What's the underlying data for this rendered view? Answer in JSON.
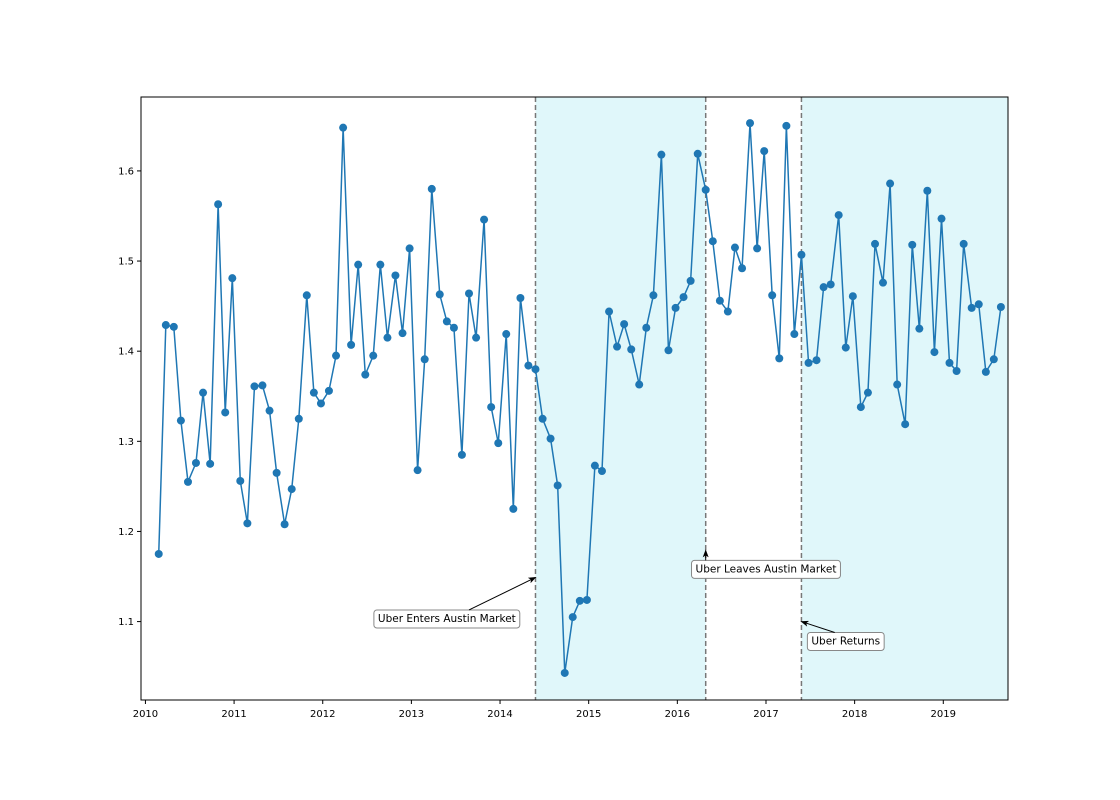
{
  "chart_data": {
    "type": "line",
    "markers": true,
    "xlim": [
      2009.95,
      2019.73
    ],
    "ylim": [
      1.013,
      1.682
    ],
    "x_ticks": [
      2010,
      2011,
      2012,
      2013,
      2014,
      2015,
      2016,
      2017,
      2018,
      2019
    ],
    "y_ticks": [
      1.1,
      1.2,
      1.3,
      1.4,
      1.5,
      1.6
    ],
    "grid": false,
    "colors": {
      "line": "#1f77b4",
      "shade": "#e0f7fa",
      "vline": "#777777"
    },
    "series": [
      {
        "x": [
          2010.15,
          2010.23,
          2010.32,
          2010.4,
          2010.48,
          2010.57,
          2010.65,
          2010.73,
          2010.82,
          2010.9,
          2010.98,
          2011.07,
          2011.15,
          2011.23,
          2011.32,
          2011.4,
          2011.48,
          2011.57,
          2011.65,
          2011.73,
          2011.82,
          2011.9,
          2011.98,
          2012.07,
          2012.15,
          2012.23,
          2012.32,
          2012.4,
          2012.48,
          2012.57,
          2012.65,
          2012.73,
          2012.82,
          2012.9,
          2012.98,
          2013.07,
          2013.15,
          2013.23,
          2013.32,
          2013.4,
          2013.48,
          2013.57,
          2013.65,
          2013.73,
          2013.82,
          2013.9,
          2013.98,
          2014.07,
          2014.15,
          2014.23,
          2014.32,
          2014.4,
          2014.48,
          2014.57,
          2014.65,
          2014.73,
          2014.82,
          2014.9,
          2014.98,
          2015.07,
          2015.15,
          2015.23,
          2015.32,
          2015.4,
          2015.48,
          2015.57,
          2015.65,
          2015.73,
          2015.82,
          2015.9,
          2015.98,
          2016.07,
          2016.15,
          2016.23,
          2016.32,
          2016.4,
          2016.48,
          2016.57,
          2016.65,
          2016.73,
          2016.82,
          2016.9,
          2016.98,
          2017.07,
          2017.15,
          2017.23,
          2017.32,
          2017.4,
          2017.48,
          2017.57,
          2017.65,
          2017.73,
          2017.82,
          2017.9,
          2017.98,
          2018.07,
          2018.15,
          2018.23,
          2018.32,
          2018.4,
          2018.48,
          2018.57,
          2018.65,
          2018.73,
          2018.82,
          2018.9,
          2018.98,
          2019.07,
          2019.15,
          2019.23,
          2019.32,
          2019.4,
          2019.48,
          2019.57,
          2019.65
        ],
        "y": [
          1.175,
          1.429,
          1.427,
          1.323,
          1.255,
          1.276,
          1.354,
          1.275,
          1.563,
          1.332,
          1.481,
          1.256,
          1.209,
          1.361,
          1.362,
          1.334,
          1.265,
          1.208,
          1.247,
          1.325,
          1.462,
          1.354,
          1.342,
          1.356,
          1.395,
          1.648,
          1.407,
          1.496,
          1.374,
          1.395,
          1.496,
          1.415,
          1.484,
          1.42,
          1.514,
          1.268,
          1.391,
          1.58,
          1.463,
          1.433,
          1.426,
          1.285,
          1.464,
          1.415,
          1.546,
          1.338,
          1.298,
          1.419,
          1.225,
          1.459,
          1.384,
          1.38,
          1.325,
          1.303,
          1.251,
          1.043,
          1.105,
          1.123,
          1.124,
          1.273,
          1.267,
          1.444,
          1.405,
          1.43,
          1.402,
          1.363,
          1.426,
          1.462,
          1.618,
          1.401,
          1.448,
          1.46,
          1.478,
          1.619,
          1.579,
          1.522,
          1.456,
          1.444,
          1.515,
          1.492,
          1.653,
          1.514,
          1.622,
          1.462,
          1.392,
          1.65,
          1.419,
          1.507,
          1.387,
          1.39,
          1.471,
          1.474,
          1.551,
          1.404,
          1.461,
          1.338,
          1.354,
          1.519,
          1.476,
          1.586,
          1.363,
          1.319,
          1.518,
          1.425,
          1.578,
          1.399,
          1.547,
          1.387,
          1.378,
          1.519,
          1.448,
          1.452,
          1.377,
          1.391,
          1.449
        ]
      }
    ],
    "shaded_regions": [
      [
        2014.4,
        2016.32
      ],
      [
        2017.4,
        2019.73
      ]
    ],
    "vlines": [
      2014.4,
      2016.32,
      2017.4
    ],
    "annotations": [
      {
        "text": "Uber Enters Austin Market",
        "x": 2014.4,
        "y": 1.149,
        "text_x": 2013.4,
        "text_y": 1.104
      },
      {
        "text": "Uber Leaves Austin Market",
        "x": 2016.32,
        "y": 1.179,
        "text_x": 2017.0,
        "text_y": 1.159
      },
      {
        "text": "Uber Returns",
        "x": 2017.4,
        "y": 1.1,
        "text_x": 2017.9,
        "text_y": 1.079
      }
    ]
  }
}
